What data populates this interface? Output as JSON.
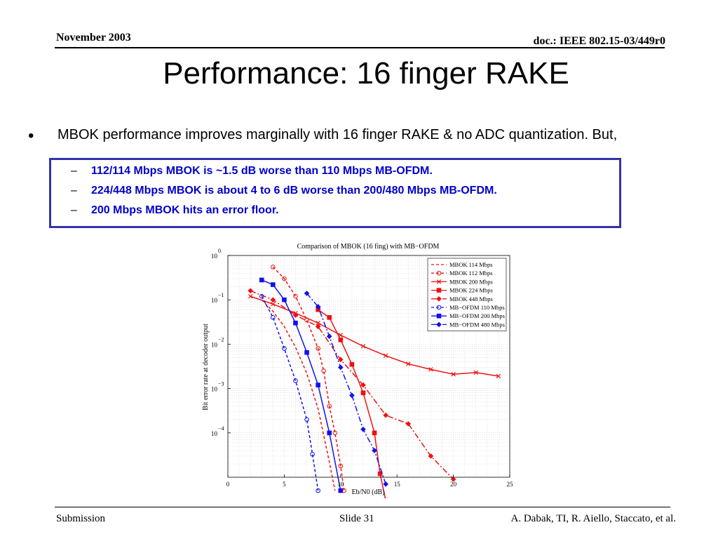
{
  "header": {
    "date": "November 2003",
    "doc_id": "doc.: IEEE 802.15-03/449r0"
  },
  "title": "Performance: 16 finger RAKE",
  "bullet": {
    "text": "MBOK performance improves marginally with 16 finger RAKE & no ADC quantization. But,"
  },
  "sub_bullets": [
    "112/114 Mbps MBOK is ~1.5 dB worse than 110 Mbps MB-OFDM.",
    "224/448 Mbps MBOK is about 4 to 6 dB worse than 200/480 Mbps MB-OFDM.",
    "200 Mbps MBOK hits an error floor."
  ],
  "footer": {
    "left": "Submission",
    "center": "Slide 31",
    "right": "A. Dabak, TI, R. Aiello, Staccato, et al."
  },
  "colors": {
    "mbok": "#ee1111",
    "mbofdm": "#1111ee",
    "callout_border": "#3333aa",
    "sub_text": "#0000cc"
  },
  "chart_data": {
    "type": "line",
    "title": "Comparison of MBOK (16 fing) with MB−OFDM",
    "xlabel": "Eb/N0 (dB)",
    "ylabel": "Bit error rate at decoder output",
    "xlim": [
      0,
      25
    ],
    "ylim": [
      1e-05,
      1
    ],
    "yscale": "log",
    "grid": true,
    "legend_position": "top-right",
    "x_ticks": [
      "0",
      "5",
      "10",
      "15",
      "20",
      "25"
    ],
    "y_ticks": [
      {
        "base": "10",
        "exp": "0",
        "value": 1
      },
      {
        "base": "10",
        "exp": "−1",
        "value": 0.1
      },
      {
        "base": "10",
        "exp": "−2",
        "value": 0.01
      },
      {
        "base": "10",
        "exp": "−3",
        "value": 0.001
      },
      {
        "base": "10",
        "exp": "−4",
        "value": 0.0001
      }
    ],
    "series": [
      {
        "name": "MBOK 114 Mbps",
        "color": "#ee1111",
        "dash": "4,3",
        "marker": "none",
        "points": [
          [
            3,
            0.1
          ],
          [
            4,
            0.055
          ],
          [
            5,
            0.025
          ],
          [
            6,
            0.0085
          ],
          [
            7,
            0.0022
          ],
          [
            8,
            0.00035
          ],
          [
            9,
            2.2e-05
          ],
          [
            9.5,
            5e-06
          ]
        ]
      },
      {
        "name": "MBOK 112 Mbps",
        "color": "#ee1111",
        "dash": "4,3",
        "marker": "circle",
        "points": [
          [
            4,
            0.55
          ],
          [
            5,
            0.3
          ],
          [
            6,
            0.12
          ],
          [
            7,
            0.035
          ],
          [
            8,
            0.008
          ],
          [
            8.5,
            0.0025
          ],
          [
            9,
            0.0004
          ],
          [
            9.5,
            0.0001
          ],
          [
            10,
            1.8e-05
          ],
          [
            10.3,
            5e-06
          ]
        ]
      },
      {
        "name": "MBOK 200 Mbps",
        "color": "#ee1111",
        "dash": "",
        "marker": "x",
        "points": [
          [
            2,
            0.12
          ],
          [
            4,
            0.08
          ],
          [
            6,
            0.05
          ],
          [
            8,
            0.03
          ],
          [
            10,
            0.016
          ],
          [
            12,
            0.009
          ],
          [
            14,
            0.0055
          ],
          [
            16,
            0.0036
          ],
          [
            18,
            0.0027
          ],
          [
            20,
            0.0021
          ],
          [
            22,
            0.0023
          ],
          [
            24,
            0.0019
          ]
        ]
      },
      {
        "name": "MBOK 224 Mbps",
        "color": "#ee1111",
        "dash": "",
        "marker": "square",
        "points": [
          [
            8,
            0.06
          ],
          [
            9,
            0.04
          ],
          [
            10,
            0.0125
          ],
          [
            11,
            0.0035
          ],
          [
            12,
            0.0008
          ],
          [
            13,
            0.0001
          ],
          [
            13.5,
            1.2e-05
          ],
          [
            14,
            3e-06
          ]
        ]
      },
      {
        "name": "MBOK 448 Mbps",
        "color": "#ee1111",
        "dash": "8,3,2,3",
        "marker": "diamond",
        "points": [
          [
            2,
            0.16
          ],
          [
            4,
            0.1
          ],
          [
            6,
            0.045
          ],
          [
            8,
            0.025
          ],
          [
            10,
            0.0045
          ],
          [
            12,
            0.0012
          ],
          [
            14,
            0.00025
          ],
          [
            16,
            0.00016
          ],
          [
            18,
            3e-05
          ],
          [
            20,
            9e-06
          ]
        ]
      },
      {
        "name": "MB−OFDM 110 Mbps",
        "color": "#1111ee",
        "dash": "4,3",
        "marker": "circle",
        "points": [
          [
            3,
            0.12
          ],
          [
            4,
            0.04
          ],
          [
            5,
            0.008
          ],
          [
            6,
            0.0015
          ],
          [
            7,
            0.0002
          ],
          [
            7.5,
            3.3e-05
          ],
          [
            8,
            5e-06
          ]
        ]
      },
      {
        "name": "MB−OFDM 200 Mbps",
        "color": "#1111ee",
        "dash": "",
        "marker": "square",
        "points": [
          [
            3,
            0.28
          ],
          [
            4,
            0.22
          ],
          [
            5,
            0.1
          ],
          [
            6,
            0.03
          ],
          [
            7,
            0.0065
          ],
          [
            8,
            0.0012
          ],
          [
            9,
            0.0001
          ],
          [
            10,
            5e-06
          ]
        ]
      },
      {
        "name": "MB−OFDM 480 Mbps",
        "color": "#1111ee",
        "dash": "8,3,2,3",
        "marker": "diamond",
        "points": [
          [
            7,
            0.14
          ],
          [
            8,
            0.07
          ],
          [
            9,
            0.015
          ],
          [
            10,
            0.003
          ],
          [
            11,
            0.0007
          ],
          [
            12,
            0.00012
          ],
          [
            13,
            4e-05
          ],
          [
            14,
            7e-06
          ]
        ]
      }
    ]
  }
}
